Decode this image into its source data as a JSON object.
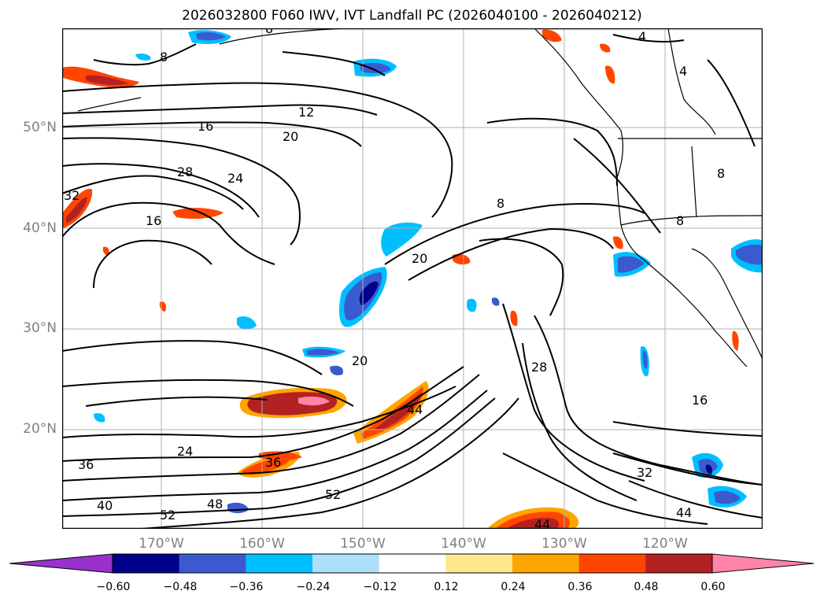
{
  "title": "2026032800 F060 IWV, IVT Landfall PC (2026040100 - 2026040212)",
  "axes": {
    "lat_labels": [
      "50°N",
      "40°N",
      "30°N",
      "20°N"
    ],
    "lon_labels": [
      "170°W",
      "160°W",
      "150°W",
      "140°W",
      "130°W",
      "120°W"
    ]
  },
  "contour_labels": [
    "12",
    "16",
    "20",
    "28",
    "24",
    "32",
    "16",
    "8",
    "8",
    "8",
    "20",
    "20",
    "28",
    "16",
    "24",
    "36",
    "36",
    "44",
    "40",
    "48",
    "52",
    "52",
    "32",
    "44",
    "4",
    "4",
    "8",
    "8",
    "44"
  ],
  "colorbar": {
    "tick_labels": [
      "−0.60",
      "−0.48",
      "−0.36",
      "−0.24",
      "−0.12",
      "0.12",
      "0.24",
      "0.36",
      "0.48",
      "0.60"
    ],
    "colors": [
      "#9932CC",
      "#00008B",
      "#3A5BD0",
      "#00BFFF",
      "#ADDFFA",
      "#FFFFFF",
      "#FFE88C",
      "#FFA500",
      "#FF4500",
      "#B22222",
      "#FF85A8"
    ]
  },
  "colors": {
    "contour": "#000000",
    "coastline": "#000000",
    "grid": "#b0b0b0"
  }
}
